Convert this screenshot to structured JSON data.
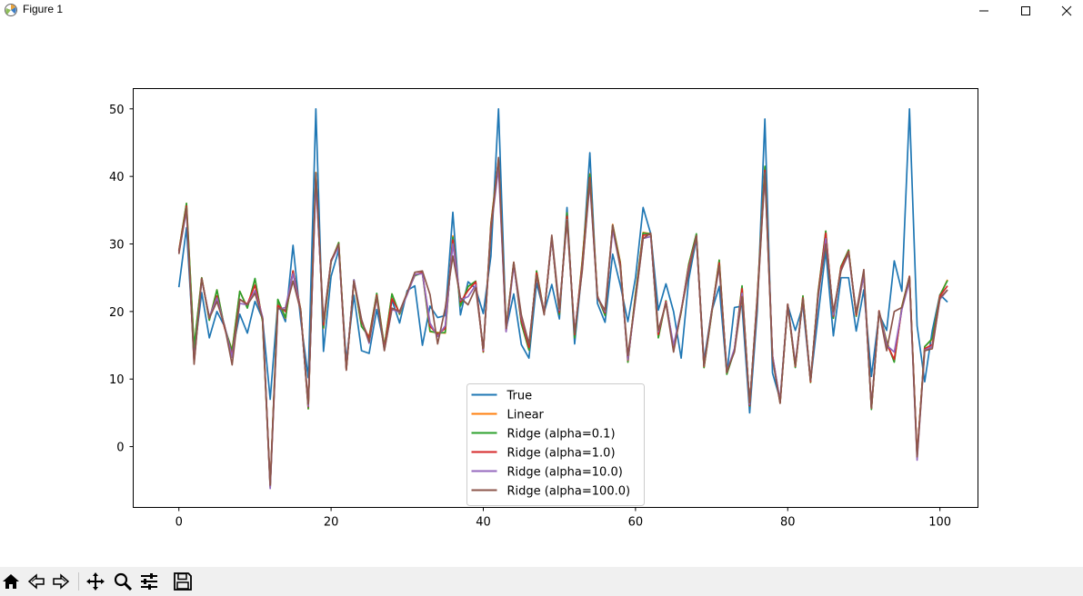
{
  "window": {
    "title": "Figure 1"
  },
  "toolbar": {
    "buttons": [
      {
        "name": "home",
        "icon": "home-icon"
      },
      {
        "name": "back",
        "icon": "back-arrow-icon"
      },
      {
        "name": "forward",
        "icon": "forward-arrow-icon"
      },
      {
        "name": "pan",
        "icon": "move-icon"
      },
      {
        "name": "zoom",
        "icon": "zoom-icon"
      },
      {
        "name": "configure",
        "icon": "sliders-icon"
      },
      {
        "name": "save",
        "icon": "save-icon"
      }
    ]
  },
  "chart_data": {
    "type": "line",
    "title": "",
    "xlabel": "",
    "ylabel": "",
    "xlim": [
      -6,
      105
    ],
    "ylim": [
      -9,
      53
    ],
    "xticks": [
      0,
      20,
      40,
      60,
      80,
      100
    ],
    "yticks": [
      0,
      10,
      20,
      30,
      40,
      50
    ],
    "legend_location": "lower center",
    "x": [
      0,
      1,
      2,
      3,
      4,
      5,
      6,
      7,
      8,
      9,
      10,
      11,
      12,
      13,
      14,
      15,
      16,
      17,
      18,
      19,
      20,
      21,
      22,
      23,
      24,
      25,
      26,
      27,
      28,
      29,
      30,
      31,
      32,
      33,
      34,
      35,
      36,
      37,
      38,
      39,
      40,
      41,
      42,
      43,
      44,
      45,
      46,
      47,
      48,
      49,
      50,
      51,
      52,
      53,
      54,
      55,
      56,
      57,
      58,
      59,
      60,
      61,
      62,
      63,
      64,
      65,
      66,
      67,
      68,
      69,
      70,
      71,
      72,
      73,
      74,
      75,
      76,
      77,
      78,
      79,
      80,
      81,
      82,
      83,
      84,
      85,
      86,
      87,
      88,
      89,
      90,
      91,
      92,
      93,
      94,
      95,
      96,
      97,
      98,
      99,
      100,
      101
    ],
    "series": [
      {
        "name": "True",
        "color": "#1f77b4",
        "values": [
          23.6,
          32.4,
          13.6,
          22.8,
          16.1,
          20.0,
          17.8,
          14.0,
          19.6,
          16.8,
          21.5,
          18.9,
          7.0,
          21.2,
          18.5,
          29.8,
          18.8,
          10.2,
          50.0,
          14.1,
          25.2,
          29.1,
          12.7,
          22.4,
          14.2,
          13.8,
          20.3,
          14.9,
          21.7,
          18.3,
          23.1,
          23.8,
          15.0,
          20.8,
          19.1,
          19.4,
          34.7,
          19.5,
          24.4,
          23.4,
          19.7,
          28.2,
          50.0,
          17.4,
          22.6,
          15.1,
          13.1,
          24.2,
          19.9,
          24.0,
          18.9,
          35.4,
          15.2,
          26.5,
          43.5,
          21.2,
          18.4,
          28.5,
          23.9,
          18.5,
          25.0,
          35.4,
          31.5,
          20.2,
          24.1,
          20.0,
          13.1,
          24.8,
          30.8,
          12.7,
          20.0,
          23.7,
          10.8,
          20.6,
          20.8,
          5.0,
          20.1,
          48.5,
          10.9,
          7.0,
          20.9,
          17.2,
          20.9,
          9.7,
          19.4,
          29.0,
          16.4,
          25.0,
          25.0,
          17.1,
          23.2,
          10.4,
          19.6,
          17.2,
          27.5,
          23.0,
          50.0,
          17.9,
          9.6,
          17.2,
          22.5,
          21.4
        ]
      },
      {
        "name": "Linear",
        "color": "#ff7f0e",
        "values": [
          29.0,
          36.0,
          14.8,
          25.0,
          18.8,
          23.2,
          17.6,
          14.3,
          23.0,
          20.6,
          24.8,
          18.5,
          -6.0,
          21.7,
          19.0,
          26.0,
          20.3,
          5.6,
          40.6,
          17.5,
          27.4,
          30.2,
          11.5,
          24.6,
          17.8,
          16.3,
          22.6,
          14.8,
          22.6,
          19.6,
          22.8,
          25.4,
          25.7,
          17.0,
          16.9,
          16.8,
          31.2,
          20.9,
          23.7,
          24.3,
          14.0,
          33.0,
          42.5,
          17.6,
          27.3,
          18.3,
          14.3,
          26.0,
          19.8,
          30.9,
          19.6,
          34.6,
          16.2,
          27.5,
          40.4,
          22.4,
          19.5,
          32.9,
          27.3,
          12.5,
          22.6,
          31.7,
          31.5,
          16.2,
          21.5,
          14.5,
          19.9,
          27.0,
          31.4,
          11.7,
          19.6,
          27.6,
          10.8,
          14.3,
          23.7,
          6.0,
          22.2,
          41.4,
          13.4,
          6.5,
          21.0,
          11.8,
          22.3,
          9.5,
          22.8,
          31.9,
          19.0,
          26.6,
          29.1,
          19.3,
          25.5,
          5.6,
          20.0,
          15.6,
          12.6,
          20.8,
          25.2,
          -1.5,
          14.8,
          15.9,
          22.4,
          24.7
        ]
      },
      {
        "name": "Ridge (alpha=0.1)",
        "color": "#2ca02c",
        "values": [
          29.0,
          36.0,
          14.7,
          25.0,
          18.7,
          23.2,
          17.6,
          14.2,
          23.0,
          20.5,
          24.9,
          18.5,
          -6.0,
          21.8,
          19.1,
          26.0,
          20.3,
          5.6,
          40.5,
          17.6,
          27.3,
          30.2,
          11.5,
          24.7,
          17.8,
          16.2,
          22.7,
          14.8,
          22.6,
          19.6,
          22.8,
          25.3,
          25.7,
          17.1,
          16.8,
          16.9,
          31.0,
          20.8,
          23.7,
          24.5,
          14.0,
          32.9,
          42.4,
          17.5,
          27.2,
          18.2,
          14.3,
          26.0,
          19.7,
          30.9,
          19.6,
          34.6,
          16.1,
          27.4,
          40.3,
          22.3,
          19.4,
          32.8,
          27.2,
          12.5,
          22.6,
          31.6,
          31.5,
          16.1,
          21.6,
          14.5,
          19.9,
          27.0,
          31.5,
          11.7,
          19.6,
          27.6,
          10.7,
          14.2,
          23.8,
          6.0,
          22.3,
          41.5,
          13.3,
          6.5,
          21.0,
          11.7,
          22.3,
          9.5,
          22.9,
          31.9,
          19.0,
          26.7,
          29.1,
          19.3,
          25.5,
          5.5,
          20.1,
          15.5,
          12.5,
          20.7,
          25.2,
          -1.5,
          14.8,
          16.0,
          22.4,
          24.6
        ]
      },
      {
        "name": "Ridge (alpha=1.0)",
        "color": "#d62728",
        "values": [
          28.9,
          35.6,
          12.5,
          24.9,
          19.0,
          22.3,
          17.6,
          13.5,
          21.8,
          21.1,
          23.9,
          19.0,
          -5.8,
          20.9,
          20.0,
          26.0,
          20.2,
          5.9,
          40.0,
          18.0,
          27.6,
          29.8,
          11.4,
          24.6,
          18.5,
          16.0,
          22.4,
          14.5,
          21.9,
          19.8,
          22.7,
          25.4,
          25.8,
          17.8,
          16.6,
          17.5,
          30.6,
          21.4,
          23.1,
          24.4,
          14.1,
          32.6,
          42.2,
          17.1,
          27.1,
          18.7,
          14.7,
          25.7,
          19.7,
          31.0,
          19.9,
          34.1,
          16.6,
          26.9,
          39.8,
          22.2,
          19.8,
          32.5,
          27.0,
          12.8,
          22.1,
          31.3,
          31.4,
          16.6,
          21.5,
          14.6,
          20.1,
          26.6,
          31.2,
          11.9,
          19.8,
          27.2,
          11.0,
          14.3,
          23.4,
          6.1,
          22.0,
          40.9,
          13.5,
          6.6,
          21.1,
          11.9,
          22.0,
          9.6,
          22.6,
          31.6,
          19.3,
          26.5,
          28.9,
          19.5,
          25.6,
          5.7,
          20.1,
          15.2,
          12.9,
          20.4,
          25.2,
          -1.3,
          14.5,
          15.1,
          22.3,
          23.8
        ]
      },
      {
        "name": "Ridge (alpha=10.0)",
        "color": "#9467bd",
        "values": [
          28.7,
          34.9,
          12.5,
          24.7,
          19.2,
          22.0,
          17.9,
          13.2,
          21.2,
          21.0,
          23.1,
          19.2,
          -6.2,
          20.3,
          20.6,
          25.6,
          20.0,
          6.0,
          39.2,
          18.5,
          27.4,
          29.6,
          11.6,
          24.7,
          18.8,
          15.3,
          22.1,
          14.3,
          20.3,
          19.9,
          22.5,
          25.5,
          25.6,
          18.3,
          16.3,
          17.9,
          30.0,
          21.7,
          22.2,
          23.9,
          14.3,
          32.1,
          41.3,
          17.0,
          26.8,
          19.2,
          15.2,
          25.3,
          19.7,
          30.9,
          20.2,
          33.6,
          16.9,
          26.2,
          39.0,
          22.2,
          20.0,
          32.1,
          26.6,
          12.9,
          21.8,
          30.8,
          31.1,
          17.0,
          21.3,
          15.0,
          20.2,
          26.2,
          31.0,
          12.0,
          19.9,
          26.6,
          11.1,
          14.5,
          22.7,
          6.3,
          21.5,
          40.5,
          13.5,
          6.7,
          21.0,
          12.3,
          21.7,
          9.8,
          22.0,
          30.8,
          19.5,
          26.1,
          28.5,
          19.8,
          25.3,
          5.8,
          20.0,
          15.0,
          14.0,
          20.3,
          24.5,
          -2.0,
          14.3,
          14.8,
          21.8,
          23.2
        ]
      },
      {
        "name": "Ridge (alpha=100.0)",
        "color": "#8c564b",
        "values": [
          28.5,
          35.4,
          12.2,
          24.9,
          19.0,
          21.5,
          17.9,
          12.1,
          21.8,
          21.0,
          22.7,
          18.9,
          -5.7,
          20.5,
          20.2,
          24.5,
          20.1,
          6.3,
          40.5,
          18.5,
          27.5,
          30.0,
          11.3,
          24.5,
          18.8,
          15.5,
          22.2,
          14.2,
          20.5,
          20.0,
          22.8,
          25.8,
          26.0,
          22.5,
          15.2,
          20.5,
          28.2,
          22.0,
          21.0,
          23.5,
          14.5,
          31.8,
          42.8,
          17.5,
          27.3,
          19.5,
          15.2,
          25.3,
          19.5,
          31.3,
          20.4,
          33.5,
          16.8,
          26.0,
          39.6,
          22.0,
          20.2,
          32.8,
          26.5,
          13.5,
          21.8,
          30.8,
          31.6,
          17.2,
          21.2,
          14.0,
          20.1,
          25.8,
          31.2,
          12.0,
          20.0,
          26.8,
          11.1,
          14.0,
          22.2,
          6.5,
          21.2,
          40.5,
          13.0,
          6.4,
          21.1,
          12.0,
          21.9,
          9.8,
          22.5,
          30.0,
          20.0,
          26.0,
          28.8,
          19.8,
          26.2,
          5.7,
          20.0,
          14.2,
          20.0,
          20.6,
          25.1,
          -1.5,
          14.2,
          14.5,
          22.0,
          23.2
        ]
      }
    ]
  }
}
